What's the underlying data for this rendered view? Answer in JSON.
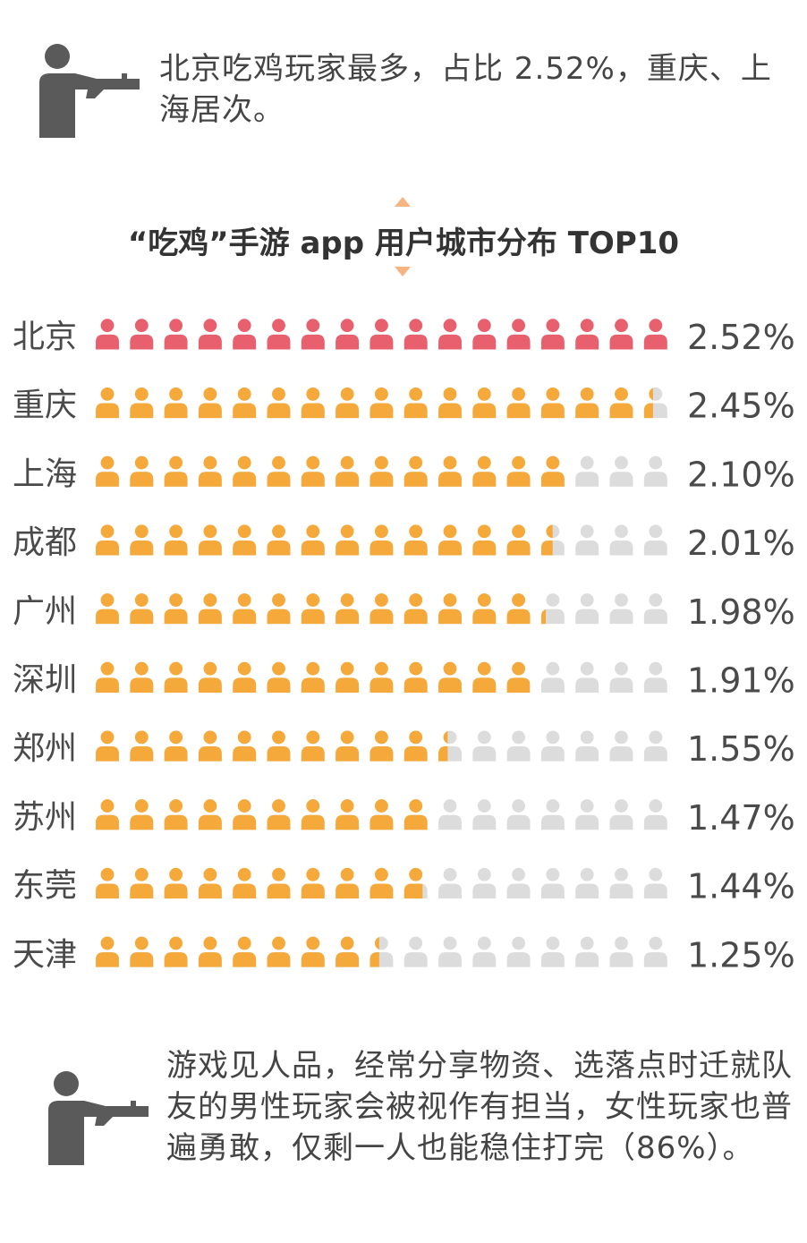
{
  "notes": {
    "top": "北京吃鸡玩家最多，占比 2.52%，重庆、上海居次。",
    "bottom": "游戏见人品，经常分享物资、选落点时迁就队友的男性玩家会被视作有担当，女性玩家也普遍勇敢，仅剩一人也能稳住打完（86%）。"
  },
  "icons": {
    "shooter": "shooter-silhouette-icon",
    "person": "person-icon",
    "marker": "triangle-marker-icon"
  },
  "chart_data": {
    "type": "bar",
    "title": "“吃鸡”手游 app 用户城市分布 TOP10",
    "categories": [
      "北京",
      "重庆",
      "上海",
      "成都",
      "广州",
      "深圳",
      "郑州",
      "苏州",
      "东莞",
      "天津"
    ],
    "values": [
      2.52,
      2.45,
      2.1,
      2.01,
      1.98,
      1.91,
      1.55,
      1.47,
      1.44,
      1.25
    ],
    "value_labels": [
      "2.52%",
      "2.45%",
      "2.10%",
      "2.01%",
      "1.98%",
      "1.91%",
      "1.55%",
      "1.47%",
      "1.44%",
      "1.25%"
    ],
    "unit": "%",
    "xlim": [
      0,
      2.52
    ],
    "legend": "none",
    "grid": false
  },
  "colors": {
    "first": "#e8606e",
    "others": "#f5a93b",
    "empty": "#dcdcdc",
    "marker": "#f6b483",
    "icon_dark": "#5a5a5a"
  }
}
